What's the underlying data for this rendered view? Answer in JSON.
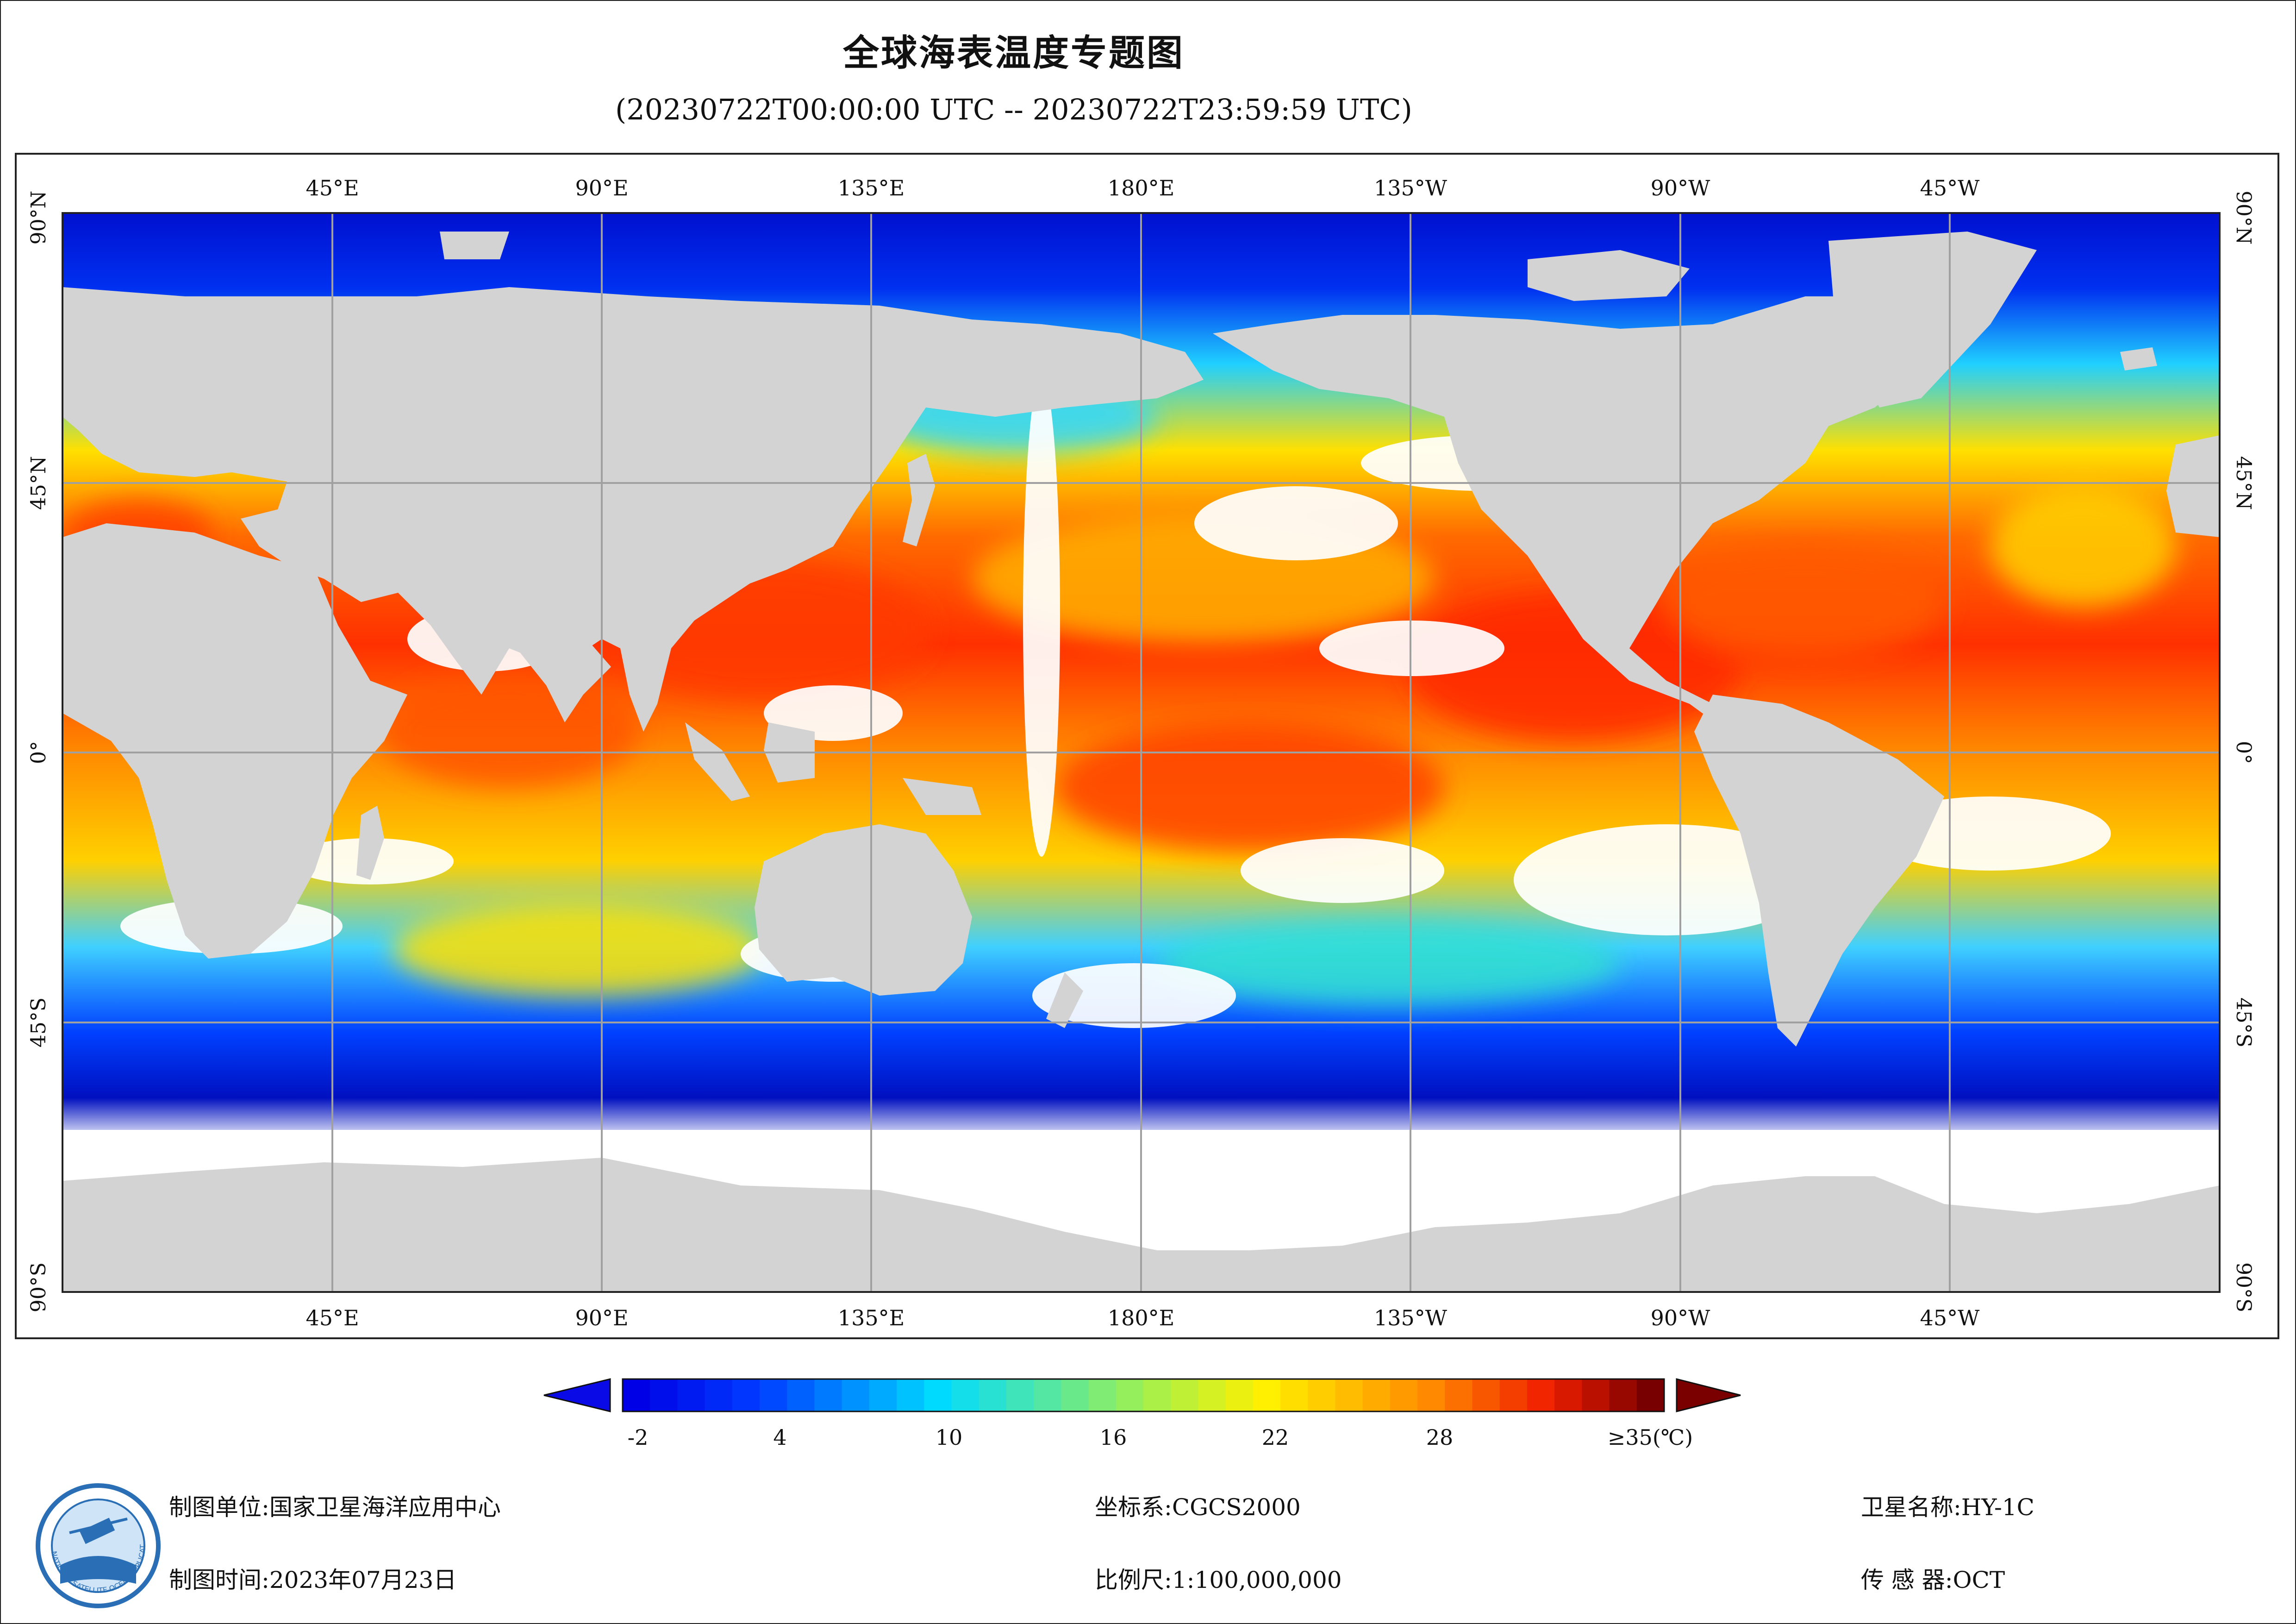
{
  "title": "全球海表温度专题图",
  "subtitle": "(20230722T00:00:00 UTC -- 20230722T23:59:59 UTC)",
  "map": {
    "top_lon_labels": [
      "45°E",
      "90°E",
      "135°E",
      "180°E",
      "135°W",
      "90°W",
      "45°W"
    ],
    "bottom_lon_labels": [
      "45°E",
      "90°E",
      "135°E",
      "180°E",
      "135°W",
      "90°W",
      "45°W"
    ],
    "lat_labels": [
      "90°N",
      "45°N",
      "0°",
      "45°S",
      "90°S"
    ],
    "colors": {
      "land": "#d3d3d3",
      "ocean_clouds": "#ffffff",
      "grid": "#a0a0a0"
    }
  },
  "colorbar": {
    "tick_labels": [
      "-2",
      "4",
      "10",
      "16",
      "22",
      "28",
      "≥35(℃)"
    ],
    "min_value": -2,
    "max_value": 35,
    "unit": "℃"
  },
  "footer": {
    "producer_label": "制图单位:",
    "producer": "国家卫星海洋应用中心",
    "date_label": "制图时间:",
    "date": "2023年07月23日",
    "crs_label": "坐标系:",
    "crs": "CGCS2000",
    "scale_label": "比例尺:",
    "scale": "1:100,000,000",
    "satellite_label": "卫星名称:",
    "satellite": "HY-1C",
    "sensor_label": "传 感 器:",
    "sensor": "OCT"
  },
  "logo": {
    "text": "NATIONAL SATELLITE OCEAN APPLICATION SERVICE"
  }
}
